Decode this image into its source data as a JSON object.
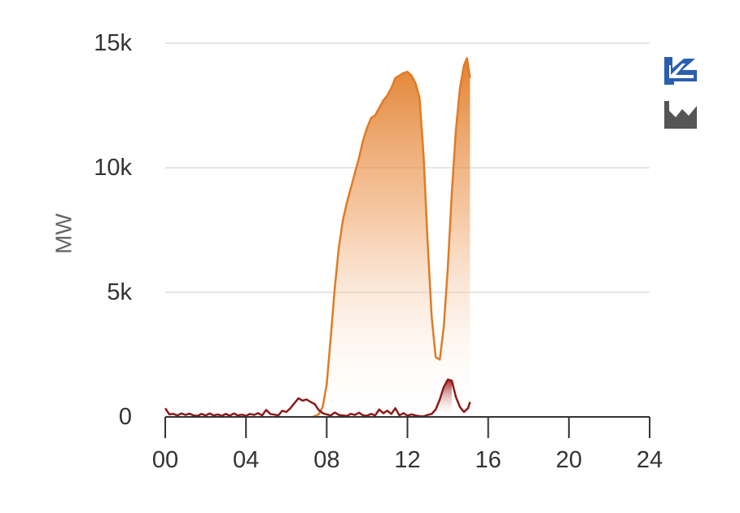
{
  "chart_data": {
    "type": "area",
    "title": "",
    "xlabel": "",
    "ylabel": "MW",
    "xlim": [
      0,
      24
    ],
    "ylim": [
      0,
      15000
    ],
    "x_ticks": [
      "00",
      "04",
      "08",
      "12",
      "16",
      "20",
      "24"
    ],
    "y_ticks": [
      "0",
      "5k",
      "10k",
      "15k"
    ],
    "grid": true,
    "legend": "none",
    "series": [
      {
        "color": "#e07b25",
        "fill": "gradient",
        "x": [
          7.3,
          7.6,
          7.8,
          8.0,
          8.2,
          8.4,
          8.6,
          8.8,
          9.0,
          9.2,
          9.4,
          9.6,
          9.8,
          10.0,
          10.2,
          10.4,
          10.6,
          10.8,
          11.0,
          11.2,
          11.4,
          11.6,
          11.8,
          12.0,
          12.2,
          12.4,
          12.6,
          12.8,
          13.0,
          13.2,
          13.4,
          13.6,
          13.8,
          14.0,
          14.2,
          14.4,
          14.6,
          14.8,
          14.95,
          15.1
        ],
        "values": [
          0,
          100,
          400,
          1300,
          3200,
          5200,
          6800,
          7900,
          8600,
          9200,
          9800,
          10400,
          11100,
          11600,
          12000,
          12100,
          12400,
          12700,
          12900,
          13200,
          13600,
          13700,
          13800,
          13850,
          13700,
          13400,
          12800,
          10500,
          7000,
          4000,
          2400,
          2300,
          3600,
          6000,
          9000,
          11500,
          13200,
          14100,
          14400,
          13600
        ]
      },
      {
        "color": "#8b1a1a",
        "fill": "partial-gradient",
        "x": [
          0.0,
          0.2,
          0.4,
          0.6,
          0.8,
          1.0,
          1.2,
          1.4,
          1.6,
          1.8,
          2.0,
          2.2,
          2.4,
          2.6,
          2.8,
          3.0,
          3.2,
          3.4,
          3.6,
          3.8,
          4.0,
          4.2,
          4.4,
          4.6,
          4.8,
          5.0,
          5.2,
          5.4,
          5.6,
          5.8,
          6.0,
          6.2,
          6.4,
          6.6,
          6.8,
          7.0,
          7.2,
          7.4,
          7.6,
          7.8,
          8.0,
          8.2,
          8.4,
          8.6,
          8.8,
          9.0,
          9.2,
          9.4,
          9.6,
          9.8,
          10.0,
          10.2,
          10.4,
          10.6,
          10.8,
          11.0,
          11.2,
          11.4,
          11.6,
          11.8,
          12.0,
          12.2,
          12.4,
          12.6,
          12.8,
          13.0,
          13.2,
          13.4,
          13.6,
          13.8,
          14.0,
          14.2,
          14.4,
          14.6,
          14.8,
          15.0,
          15.1
        ],
        "values": [
          350,
          100,
          120,
          60,
          140,
          80,
          130,
          60,
          40,
          120,
          60,
          140,
          60,
          100,
          40,
          120,
          50,
          140,
          60,
          90,
          40,
          120,
          80,
          150,
          60,
          280,
          120,
          90,
          60,
          250,
          200,
          350,
          550,
          750,
          650,
          700,
          600,
          520,
          280,
          150,
          100,
          60,
          180,
          80,
          60,
          40,
          120,
          80,
          170,
          60,
          50,
          120,
          60,
          300,
          150,
          250,
          120,
          350,
          60,
          150,
          50,
          100,
          60,
          30,
          20,
          80,
          120,
          300,
          700,
          1200,
          1500,
          1450,
          800,
          400,
          200,
          350,
          600
        ]
      }
    ]
  },
  "controls": {
    "toggle_icons": [
      "line-chart-icon",
      "area-chart-icon"
    ],
    "active_color": "#2a5fb0",
    "inactive_color": "#555555"
  }
}
